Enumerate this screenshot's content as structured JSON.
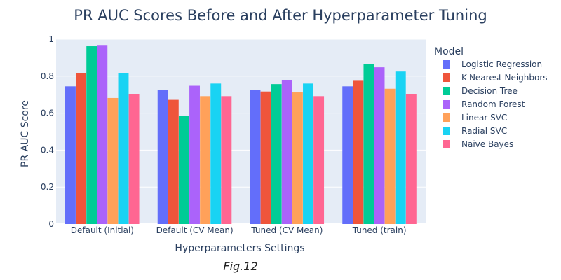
{
  "chart_data": {
    "type": "bar",
    "title": "PR AUC Scores Before and After Hyperparameter Tuning",
    "xlabel": "Hyperparameters Settings",
    "ylabel": "PR AUC Score",
    "caption": "Fig.12",
    "categories": [
      "Default (Initial)",
      "Default (CV Mean)",
      "Tuned (CV Mean)",
      "Tuned (train)"
    ],
    "ylim": [
      0,
      1
    ],
    "yticks": [
      0,
      0.2,
      0.4,
      0.6,
      0.8,
      1
    ],
    "ytick_labels": [
      "0",
      "0.2",
      "0.4",
      "0.6",
      "0.8",
      "1"
    ],
    "grid": true,
    "legend": {
      "title": "Model",
      "position": "right"
    },
    "series": [
      {
        "name": "Logistic Regression",
        "color": "#636efa",
        "values": [
          0.745,
          0.725,
          0.725,
          0.745
        ]
      },
      {
        "name": "K-Nearest Neighbors",
        "color": "#ef553b",
        "values": [
          0.815,
          0.672,
          0.717,
          0.775
        ]
      },
      {
        "name": "Decision Tree",
        "color": "#00cc96",
        "values": [
          0.962,
          0.585,
          0.757,
          0.865
        ]
      },
      {
        "name": "Random Forest",
        "color": "#ab63fa",
        "values": [
          0.965,
          0.748,
          0.777,
          0.848
        ]
      },
      {
        "name": "Linear SVC",
        "color": "#ffa15a",
        "values": [
          0.682,
          0.692,
          0.712,
          0.732
        ]
      },
      {
        "name": "Radial SVC",
        "color": "#19d3f3",
        "values": [
          0.817,
          0.76,
          0.76,
          0.825
        ]
      },
      {
        "name": "Naive Bayes",
        "color": "#ff6692",
        "values": [
          0.703,
          0.692,
          0.692,
          0.703
        ]
      }
    ]
  }
}
